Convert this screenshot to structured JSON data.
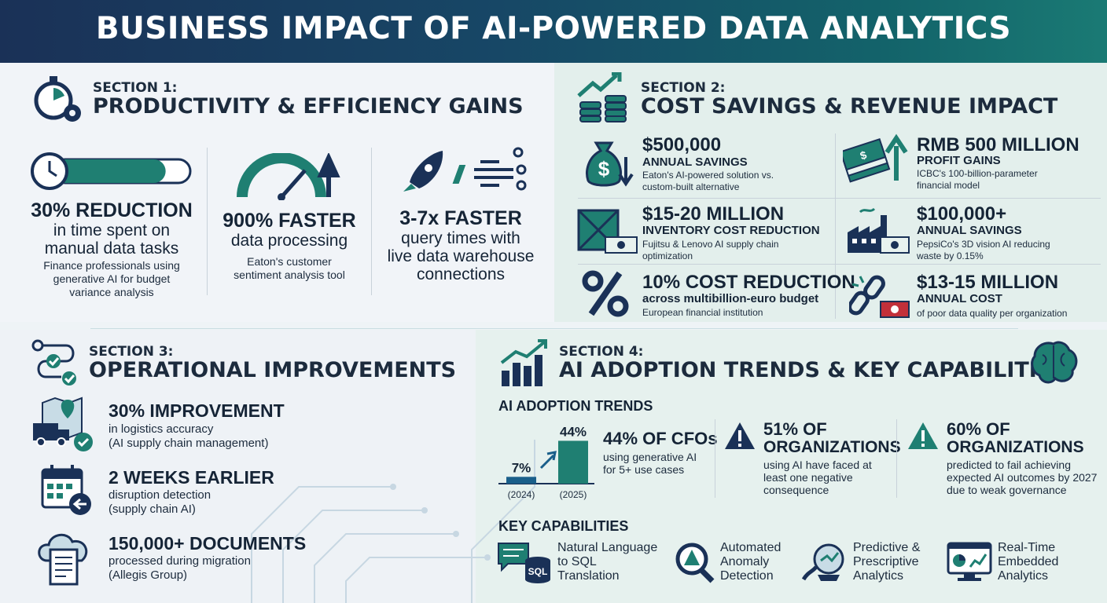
{
  "header": {
    "title": "BUSINESS IMPACT OF AI-POWERED DATA ANALYTICS"
  },
  "colors": {
    "navy": "#1a3157",
    "teal": "#1f7f72",
    "red": "#c2303a"
  },
  "section1": {
    "kicker": "SECTION 1:",
    "title": "PRODUCTIVITY & EFFICIENCY GAINS",
    "stats": [
      {
        "icon": "clock-progress-icon",
        "headline": "30% REDUCTION",
        "line2": "in time spent on",
        "line3": "manual data tasks",
        "desc1": "Finance professionals using",
        "desc2": "generative AI for budget",
        "desc3": "variance analysis",
        "progress": 0.82
      },
      {
        "icon": "gauge-arrow-icon",
        "headline": "900% FASTER",
        "line2": "data processing",
        "desc1": "Eaton's customer",
        "desc2": "sentiment analysis tool"
      },
      {
        "icon": "rocket-icon",
        "headline": "3-7x FASTER",
        "line2": "query times with",
        "line3": "live data warehouse",
        "line4": "connections"
      }
    ]
  },
  "section2": {
    "kicker": "SECTION 2:",
    "title": "COST SAVINGS & REVENUE IMPACT",
    "items": [
      {
        "icon": "money-bag-icon",
        "headline": "$500,000",
        "label": "ANNUAL SAVINGS",
        "desc1": "Eaton's AI-powered solution vs.",
        "desc2": "custom-built alternative"
      },
      {
        "icon": "cash-stack-icon",
        "headline": "RMB 500 MILLION",
        "label": "PROFIT GAINS",
        "desc1": "ICBC's 100-billion-parameter",
        "desc2": "financial model"
      },
      {
        "icon": "crate-icon",
        "headline": "$15-20 MILLION",
        "label": "INVENTORY COST REDUCTION",
        "desc1": "Fujitsu & Lenovo AI supply chain",
        "desc2": "optimization"
      },
      {
        "icon": "factory-icon",
        "headline": "$100,000+",
        "label": "ANNUAL SAVINGS",
        "desc1": "PepsiCo's 3D vision AI reducing",
        "desc2": "waste by 0.15%"
      },
      {
        "icon": "percent-icon",
        "headline": "10% COST REDUCTION",
        "label": "across multibillion-euro budget",
        "desc1": "European financial institution",
        "desc2": ""
      },
      {
        "icon": "broken-link-icon",
        "headline": "$13-15 MILLION",
        "label": "ANNUAL COST",
        "desc1": "of poor data quality per organization",
        "desc2": ""
      }
    ]
  },
  "section3": {
    "kicker": "SECTION 3:",
    "title": "OPERATIONAL IMPROVEMENTS",
    "items": [
      {
        "icon": "delivery-map-icon",
        "headline": "30% IMPROVEMENT",
        "desc1": "in logistics accuracy",
        "desc2": "(AI supply chain management)"
      },
      {
        "icon": "calendar-back-icon",
        "headline": "2 WEEKS EARLIER",
        "desc1": "disruption detection",
        "desc2": "(supply chain AI)"
      },
      {
        "icon": "cloud-document-icon",
        "headline": "150,000+ DOCUMENTS",
        "desc1": "processed during migration",
        "desc2": "(Allegis Group)"
      }
    ]
  },
  "section4": {
    "kicker": "SECTION 4:",
    "title": "AI ADOPTION TRENDS & KEY CAPABILITIES",
    "trends_label": "AI ADOPTION TRENDS",
    "chart_data": {
      "type": "bar",
      "categories": [
        "(2024)",
        "(2025)"
      ],
      "values": [
        7,
        44
      ],
      "data_labels": [
        "7%",
        "44%"
      ],
      "ylim": [
        0,
        50
      ]
    },
    "cfo": {
      "headline": "44% OF CFOs",
      "desc1": "using generative AI",
      "desc2": "for 5+ use cases"
    },
    "warn1": {
      "headline1": "51% OF",
      "headline2": "ORGANIZATIONS",
      "desc1": "using AI have faced at",
      "desc2": "least one negative",
      "desc3": "consequence"
    },
    "warn2": {
      "headline1": "60% OF",
      "headline2": "ORGANIZATIONS",
      "desc1": "predicted to fail achieving",
      "desc2": "expected AI outcomes by 2027",
      "desc3": "due to weak governance"
    },
    "capabilities_label": "KEY CAPABILITIES",
    "capabilities": [
      {
        "icon": "sql-chat-icon",
        "line1": "Natural Language",
        "line2": "to SQL",
        "line3": "Translation",
        "badge": "SQL"
      },
      {
        "icon": "anomaly-search-icon",
        "line1": "Automated",
        "line2": "Anomaly",
        "line3": "Detection"
      },
      {
        "icon": "crystal-ball-icon",
        "line1": "Predictive &",
        "line2": "Prescriptive",
        "line3": "Analytics"
      },
      {
        "icon": "dashboard-icon",
        "line1": "Real-Time",
        "line2": "Embedded",
        "line3": "Analytics"
      }
    ]
  }
}
